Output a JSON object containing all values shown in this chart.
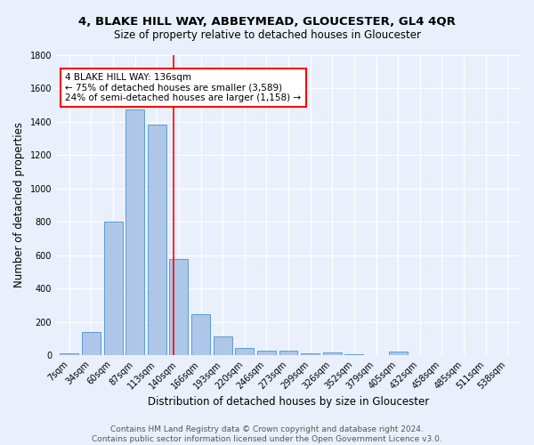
{
  "title": "4, BLAKE HILL WAY, ABBEYMEAD, GLOUCESTER, GL4 4QR",
  "subtitle": "Size of property relative to detached houses in Gloucester",
  "xlabel": "Distribution of detached houses by size in Gloucester",
  "ylabel": "Number of detached properties",
  "bar_labels": [
    "7sqm",
    "34sqm",
    "60sqm",
    "87sqm",
    "113sqm",
    "140sqm",
    "166sqm",
    "193sqm",
    "220sqm",
    "246sqm",
    "273sqm",
    "299sqm",
    "326sqm",
    "352sqm",
    "379sqm",
    "405sqm",
    "432sqm",
    "458sqm",
    "485sqm",
    "511sqm",
    "538sqm"
  ],
  "bar_values": [
    10,
    140,
    800,
    1470,
    1380,
    575,
    248,
    115,
    42,
    28,
    28,
    12,
    18,
    8,
    0,
    22,
    0,
    0,
    0,
    0,
    0
  ],
  "bar_color": "#aec6e8",
  "bar_edge_color": "#5a9fd4",
  "vline_pos": 4.75,
  "annotation_text": "4 BLAKE HILL WAY: 136sqm\n← 75% of detached houses are smaller (3,589)\n24% of semi-detached houses are larger (1,158) →",
  "annotation_box_color": "white",
  "annotation_box_edge": "red",
  "vline_color": "red",
  "ylim": [
    0,
    1800
  ],
  "yticks": [
    0,
    200,
    400,
    600,
    800,
    1000,
    1200,
    1400,
    1600,
    1800
  ],
  "footer_line1": "Contains HM Land Registry data © Crown copyright and database right 2024.",
  "footer_line2": "Contains public sector information licensed under the Open Government Licence v3.0.",
  "bg_color": "#eaf0fb",
  "grid_color": "white",
  "title_fontsize": 9.5,
  "subtitle_fontsize": 8.5,
  "axis_label_fontsize": 8.5,
  "tick_fontsize": 7,
  "annotation_fontsize": 7.5,
  "footer_fontsize": 6.5
}
